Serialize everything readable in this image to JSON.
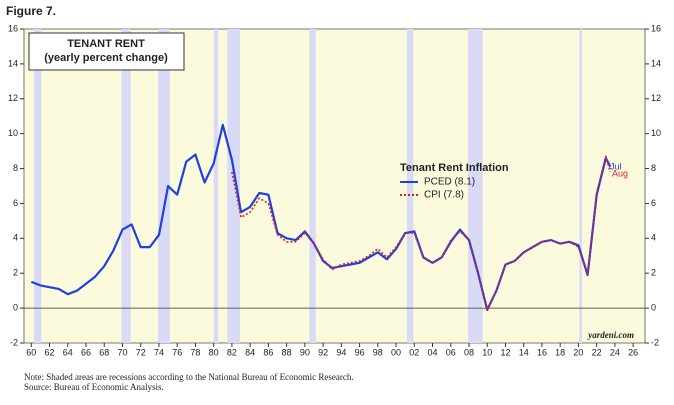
{
  "figure_label": "Figure 7.",
  "chart_data": {
    "type": "line",
    "title": "TENANT RENT",
    "subtitle": "(yearly percent change)",
    "legend_title": "Tenant Rent Inflation",
    "x": [
      1960,
      1961,
      1962,
      1963,
      1964,
      1965,
      1966,
      1967,
      1968,
      1969,
      1970,
      1971,
      1972,
      1973,
      1974,
      1975,
      1976,
      1977,
      1978,
      1979,
      1980,
      1981,
      1982,
      1983,
      1984,
      1985,
      1986,
      1987,
      1988,
      1989,
      1990,
      1991,
      1992,
      1993,
      1994,
      1995,
      1996,
      1997,
      1998,
      1999,
      2000,
      2001,
      2002,
      2003,
      2004,
      2005,
      2006,
      2007,
      2008,
      2009,
      2010,
      2011,
      2012,
      2013,
      2014,
      2015,
      2016,
      2017,
      2018,
      2019,
      2020,
      2021,
      2022,
      2023,
      2023.5
    ],
    "series": [
      {
        "name": "PCED (8.1)",
        "color": "#1f3fe0",
        "style": "solid",
        "values": [
          1.5,
          1.3,
          1.2,
          1.1,
          0.8,
          1.0,
          1.4,
          1.8,
          2.4,
          3.3,
          4.5,
          4.8,
          3.5,
          3.5,
          4.2,
          7.0,
          6.5,
          8.4,
          8.8,
          7.2,
          8.3,
          10.5,
          8.5,
          5.5,
          5.8,
          6.6,
          6.5,
          4.3,
          4.0,
          3.9,
          4.4,
          3.7,
          2.7,
          2.3,
          2.4,
          2.5,
          2.6,
          2.9,
          3.2,
          2.8,
          3.4,
          4.3,
          4.4,
          2.9,
          2.6,
          2.9,
          3.8,
          4.5,
          3.9,
          2.0,
          -0.1,
          1.0,
          2.5,
          2.7,
          3.2,
          3.5,
          3.8,
          3.9,
          3.7,
          3.8,
          3.6,
          1.9,
          6.5,
          8.6,
          8.1
        ]
      },
      {
        "name": "CPI (7.8)",
        "color": "#e02020",
        "style": "dotted",
        "values": [
          null,
          null,
          null,
          null,
          null,
          null,
          null,
          null,
          null,
          null,
          null,
          null,
          null,
          null,
          null,
          null,
          null,
          null,
          null,
          null,
          null,
          null,
          7.8,
          5.2,
          5.5,
          6.3,
          6.0,
          4.2,
          3.8,
          3.8,
          4.3,
          3.7,
          2.8,
          2.2,
          2.5,
          2.6,
          2.7,
          3.0,
          3.4,
          2.9,
          3.5,
          4.3,
          4.3,
          2.9,
          2.6,
          2.9,
          3.9,
          4.4,
          3.9,
          2.0,
          -0.1,
          1.0,
          2.5,
          2.7,
          3.2,
          3.5,
          3.8,
          3.9,
          3.7,
          3.8,
          3.5,
          1.9,
          6.6,
          8.7,
          7.8
        ]
      }
    ],
    "recessions": [
      [
        1960.3,
        1961.1
      ],
      [
        1969.9,
        1970.9
      ],
      [
        1973.9,
        1975.2
      ],
      [
        1980.0,
        1980.5
      ],
      [
        1981.5,
        1982.9
      ],
      [
        1990.5,
        1991.2
      ],
      [
        2001.2,
        2001.9
      ],
      [
        2007.9,
        2009.5
      ],
      [
        2020.1,
        2020.4
      ]
    ],
    "annotations": [
      {
        "text": "Jul",
        "color": "#1f3fe0"
      },
      {
        "text": "Aug",
        "color": "#e02020"
      }
    ],
    "xlim": [
      1959.2,
      2027.3
    ],
    "xticks": [
      {
        "value": 1960,
        "label": "60"
      },
      {
        "value": 1962,
        "label": "62"
      },
      {
        "value": 1964,
        "label": "64"
      },
      {
        "value": 1966,
        "label": "66"
      },
      {
        "value": 1968,
        "label": "68"
      },
      {
        "value": 1970,
        "label": "70"
      },
      {
        "value": 1972,
        "label": "72"
      },
      {
        "value": 1974,
        "label": "74"
      },
      {
        "value": 1976,
        "label": "76"
      },
      {
        "value": 1978,
        "label": "78"
      },
      {
        "value": 1980,
        "label": "80"
      },
      {
        "value": 1982,
        "label": "82"
      },
      {
        "value": 1984,
        "label": "84"
      },
      {
        "value": 1986,
        "label": "86"
      },
      {
        "value": 1988,
        "label": "88"
      },
      {
        "value": 1990,
        "label": "90"
      },
      {
        "value": 1992,
        "label": "92"
      },
      {
        "value": 1994,
        "label": "94"
      },
      {
        "value": 1996,
        "label": "96"
      },
      {
        "value": 1998,
        "label": "98"
      },
      {
        "value": 2000,
        "label": "00"
      },
      {
        "value": 2002,
        "label": "02"
      },
      {
        "value": 2004,
        "label": "04"
      },
      {
        "value": 2006,
        "label": "06"
      },
      {
        "value": 2008,
        "label": "08"
      },
      {
        "value": 2010,
        "label": "10"
      },
      {
        "value": 2012,
        "label": "12"
      },
      {
        "value": 2014,
        "label": "14"
      },
      {
        "value": 2016,
        "label": "16"
      },
      {
        "value": 2018,
        "label": "18"
      },
      {
        "value": 2020,
        "label": "20"
      },
      {
        "value": 2022,
        "label": "22"
      },
      {
        "value": 2024,
        "label": "24"
      },
      {
        "value": 2026,
        "label": "26"
      }
    ],
    "ylim": [
      -2,
      16
    ],
    "yticks": [
      -2,
      0,
      2,
      4,
      6,
      8,
      10,
      12,
      14,
      16
    ],
    "watermark": "yardeni.com"
  },
  "notes": [
    "Note: Shaded areas are recessions according to the National Bureau of Economic Research.",
    "Source: Bureau of Economic Analysis."
  ]
}
